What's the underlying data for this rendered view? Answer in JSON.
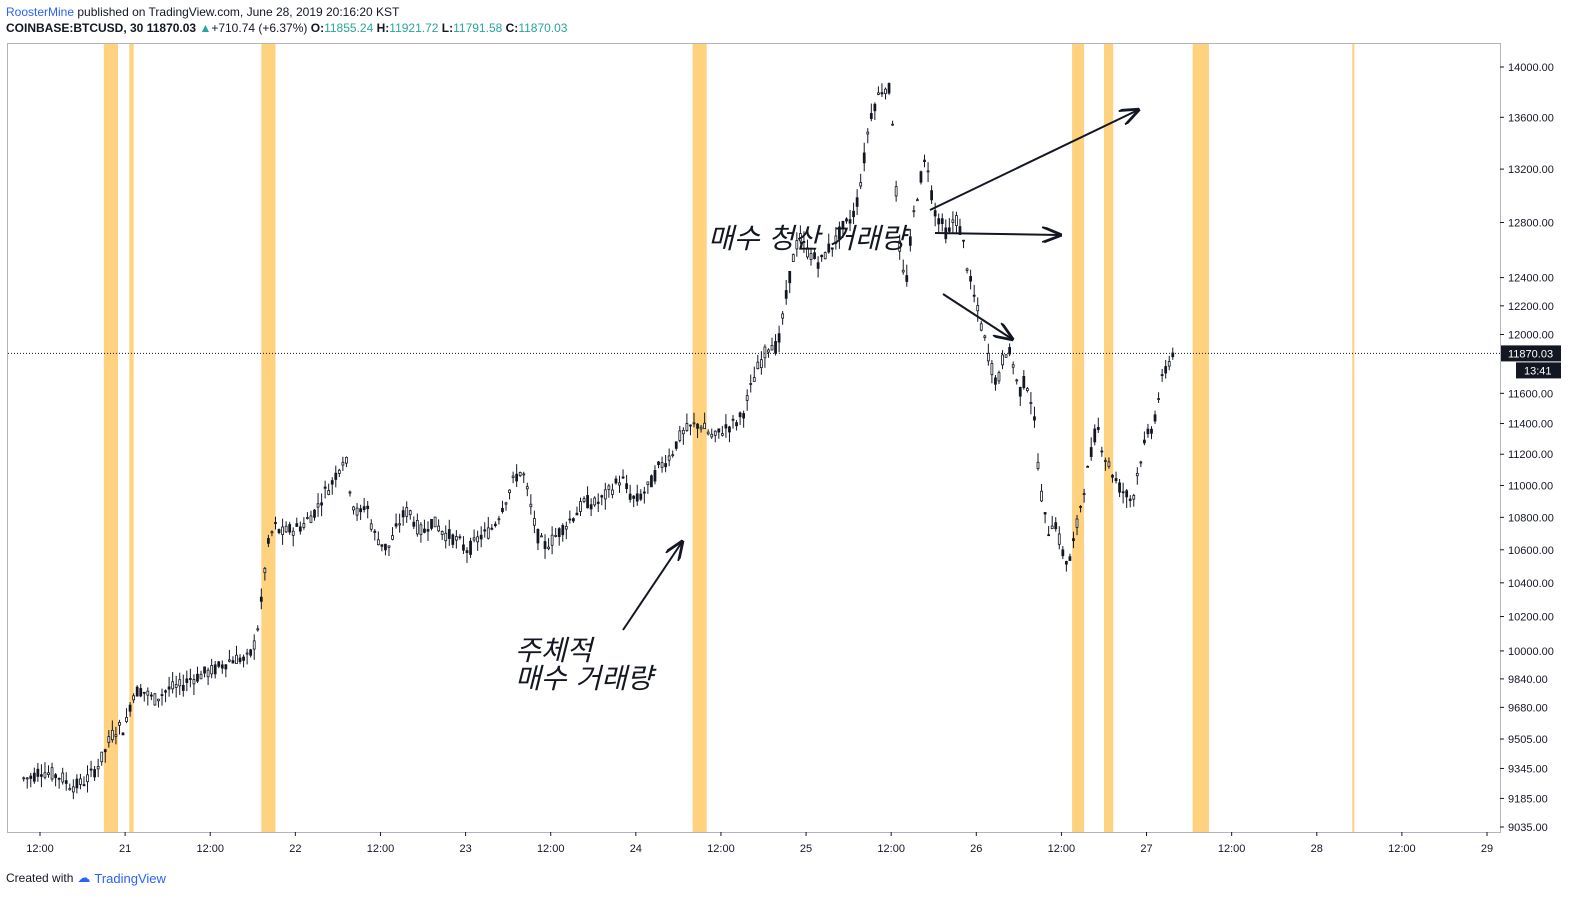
{
  "header": {
    "author": "RoosterMine",
    "published": "published on TradingView.com, June 28, 2019 20:16:20 KST",
    "symbol": "COINBASE:BTCUSD, 30",
    "last": "11870.03",
    "change": "+710.74 (+6.37%)",
    "o_label": "O:",
    "o": "11855.24",
    "h_label": "H:",
    "h": "11921.72",
    "l_label": "L:",
    "l": "11791.58",
    "c_label": "C:",
    "c": "11870.03"
  },
  "footer": {
    "created_with": "Created with",
    "brand": "TradingView"
  },
  "colors": {
    "highlight": "#ffd27f",
    "candle": "#131722",
    "price_tag": "#131722",
    "accent": "#26a69a"
  },
  "chart_data": {
    "type": "candlestick",
    "price_scale": "log",
    "y_ticks": [
      9035,
      9185,
      9345,
      9505,
      9680,
      9840,
      10000,
      10200,
      10400,
      10600,
      10800,
      11000,
      11200,
      11400,
      11600,
      12000,
      12200,
      12400,
      12800,
      13200,
      13600,
      14000
    ],
    "y_tick_labels": [
      "9035.00",
      "9185.00",
      "9345.00",
      "9505.00",
      "9680.00",
      "9840.00",
      "10000.00",
      "10200.00",
      "10400.00",
      "10600.00",
      "10800.00",
      "11000.00",
      "11200.00",
      "11400.00",
      "11600.00",
      "12000.00",
      "12200.00",
      "12400.00",
      "12800.00",
      "13200.00",
      "13600.00",
      "14000.00"
    ],
    "x_ticks": [
      {
        "t": 0,
        "label": "12:00"
      },
      {
        "t": 12,
        "label": "21"
      },
      {
        "t": 24,
        "label": "12:00"
      },
      {
        "t": 36,
        "label": "22"
      },
      {
        "t": 48,
        "label": "12:00"
      },
      {
        "t": 60,
        "label": "23"
      },
      {
        "t": 72,
        "label": "12:00"
      },
      {
        "t": 84,
        "label": "24"
      },
      {
        "t": 96,
        "label": "12:00"
      },
      {
        "t": 108,
        "label": "25"
      },
      {
        "t": 120,
        "label": "12:00"
      },
      {
        "t": 132,
        "label": "26"
      },
      {
        "t": 144,
        "label": "12:00"
      },
      {
        "t": 156,
        "label": "27"
      },
      {
        "t": 168,
        "label": "12:00"
      },
      {
        "t": 180,
        "label": "28"
      },
      {
        "t": 192,
        "label": "12:00"
      },
      {
        "t": 204,
        "label": "29"
      }
    ],
    "x_unit": "hours since Jun 20 12:00",
    "last_price": 11870.03,
    "last_price_label": "11870.03",
    "countdown": "13:41",
    "highlight_zones": [
      [
        9,
        11
      ],
      [
        12.6,
        13.2
      ],
      [
        31.2,
        33.2
      ],
      [
        92,
        94
      ],
      [
        145.5,
        147.2
      ],
      [
        150,
        151.3
      ],
      [
        162.5,
        164.8
      ],
      [
        185,
        185.3
      ]
    ],
    "annotations": [
      {
        "text": "매수 청산 거래량"
      },
      {
        "text": "주체적"
      },
      {
        "text": "매수 거래량"
      }
    ],
    "series_path": [
      [
        -2.3,
        9290
      ],
      [
        -1,
        9300
      ],
      [
        0,
        9340
      ],
      [
        1,
        9320
      ],
      [
        2,
        9310
      ],
      [
        3,
        9300
      ],
      [
        4,
        9260
      ],
      [
        5,
        9250
      ],
      [
        6,
        9270
      ],
      [
        7,
        9300
      ],
      [
        8,
        9350
      ],
      [
        9,
        9420
      ],
      [
        10,
        9520
      ],
      [
        11,
        9570
      ],
      [
        12,
        9560
      ],
      [
        13,
        9750
      ],
      [
        14,
        9780
      ],
      [
        15,
        9760
      ],
      [
        16,
        9720
      ],
      [
        17,
        9750
      ],
      [
        18,
        9780
      ],
      [
        19,
        9790
      ],
      [
        20,
        9800
      ],
      [
        21,
        9840
      ],
      [
        22,
        9850
      ],
      [
        23,
        9870
      ],
      [
        24,
        9880
      ],
      [
        25,
        9900
      ],
      [
        26,
        9930
      ],
      [
        27,
        9950
      ],
      [
        28,
        9960
      ],
      [
        29,
        9940
      ],
      [
        30,
        10000
      ],
      [
        31,
        10200
      ],
      [
        32,
        10600
      ],
      [
        33,
        10750
      ],
      [
        34,
        10700
      ],
      [
        35,
        10720
      ],
      [
        36,
        10730
      ],
      [
        37,
        10750
      ],
      [
        38,
        10800
      ],
      [
        39,
        10850
      ],
      [
        40,
        10950
      ],
      [
        41,
        11000
      ],
      [
        42,
        11100
      ],
      [
        43,
        11200
      ],
      [
        44,
        10900
      ],
      [
        45,
        10800
      ],
      [
        46,
        10900
      ],
      [
        47,
        10700
      ],
      [
        48,
        10650
      ],
      [
        49,
        10600
      ],
      [
        50,
        10700
      ],
      [
        51,
        10800
      ],
      [
        52,
        10850
      ],
      [
        53,
        10750
      ],
      [
        54,
        10700
      ],
      [
        55,
        10780
      ],
      [
        56,
        10750
      ],
      [
        57,
        10700
      ],
      [
        58,
        10680
      ],
      [
        59,
        10650
      ],
      [
        60,
        10600
      ],
      [
        61,
        10620
      ],
      [
        62,
        10680
      ],
      [
        63,
        10700
      ],
      [
        64,
        10750
      ],
      [
        65,
        10850
      ],
      [
        66,
        10950
      ],
      [
        67,
        11050
      ],
      [
        68,
        11100
      ],
      [
        69,
        10900
      ],
      [
        70,
        10700
      ],
      [
        71,
        10620
      ],
      [
        72,
        10650
      ],
      [
        73,
        10700
      ],
      [
        74,
        10750
      ],
      [
        75,
        10800
      ],
      [
        76,
        10850
      ],
      [
        77,
        10900
      ],
      [
        78,
        10880
      ],
      [
        79,
        10900
      ],
      [
        80,
        10950
      ],
      [
        81,
        11000
      ],
      [
        82,
        11050
      ],
      [
        83,
        10950
      ],
      [
        84,
        10900
      ],
      [
        85,
        10950
      ],
      [
        86,
        11000
      ],
      [
        87,
        11100
      ],
      [
        88,
        11150
      ],
      [
        89,
        11200
      ],
      [
        90,
        11300
      ],
      [
        91,
        11350
      ],
      [
        92,
        11380
      ],
      [
        93,
        11400
      ],
      [
        94,
        11350
      ],
      [
        95,
        11300
      ],
      [
        96,
        11350
      ],
      [
        97,
        11380
      ],
      [
        98,
        11400
      ],
      [
        99,
        11450
      ],
      [
        100,
        11600
      ],
      [
        101,
        11750
      ],
      [
        102,
        11850
      ],
      [
        103,
        11950
      ],
      [
        104,
        11900
      ],
      [
        105,
        12200
      ],
      [
        106,
        12500
      ],
      [
        107,
        12700
      ],
      [
        108,
        12600
      ],
      [
        109,
        12550
      ],
      [
        110,
        12500
      ],
      [
        111,
        12600
      ],
      [
        112,
        12650
      ],
      [
        113,
        12750
      ],
      [
        114,
        12800
      ],
      [
        115,
        12900
      ],
      [
        116,
        13200
      ],
      [
        117,
        13600
      ],
      [
        118,
        13750
      ],
      [
        119,
        13850
      ],
      [
        120,
        13800
      ],
      [
        121,
        12700
      ],
      [
        122,
        12300
      ],
      [
        123,
        12800
      ],
      [
        124,
        13100
      ],
      [
        125,
        13300
      ],
      [
        126,
        12900
      ],
      [
        127,
        12800
      ],
      [
        128,
        12700
      ],
      [
        129,
        12850
      ],
      [
        130,
        12700
      ],
      [
        131,
        12400
      ],
      [
        132,
        12200
      ],
      [
        133,
        12000
      ],
      [
        134,
        11800
      ],
      [
        135,
        11650
      ],
      [
        136,
        11900
      ],
      [
        137,
        11850
      ],
      [
        138,
        11600
      ],
      [
        139,
        11700
      ],
      [
        140,
        11500
      ],
      [
        141,
        11000
      ],
      [
        142,
        10700
      ],
      [
        143,
        10800
      ],
      [
        144,
        10600
      ],
      [
        145,
        10500
      ],
      [
        146,
        10700
      ],
      [
        147,
        10950
      ],
      [
        148,
        11150
      ],
      [
        149,
        11400
      ],
      [
        150,
        11200
      ],
      [
        151,
        11100
      ],
      [
        152,
        11000
      ],
      [
        153,
        10950
      ],
      [
        154,
        10900
      ],
      [
        155,
        11150
      ],
      [
        156,
        11300
      ],
      [
        157,
        11400
      ],
      [
        158,
        11650
      ],
      [
        159,
        11800
      ],
      [
        160,
        11900
      ]
    ]
  }
}
